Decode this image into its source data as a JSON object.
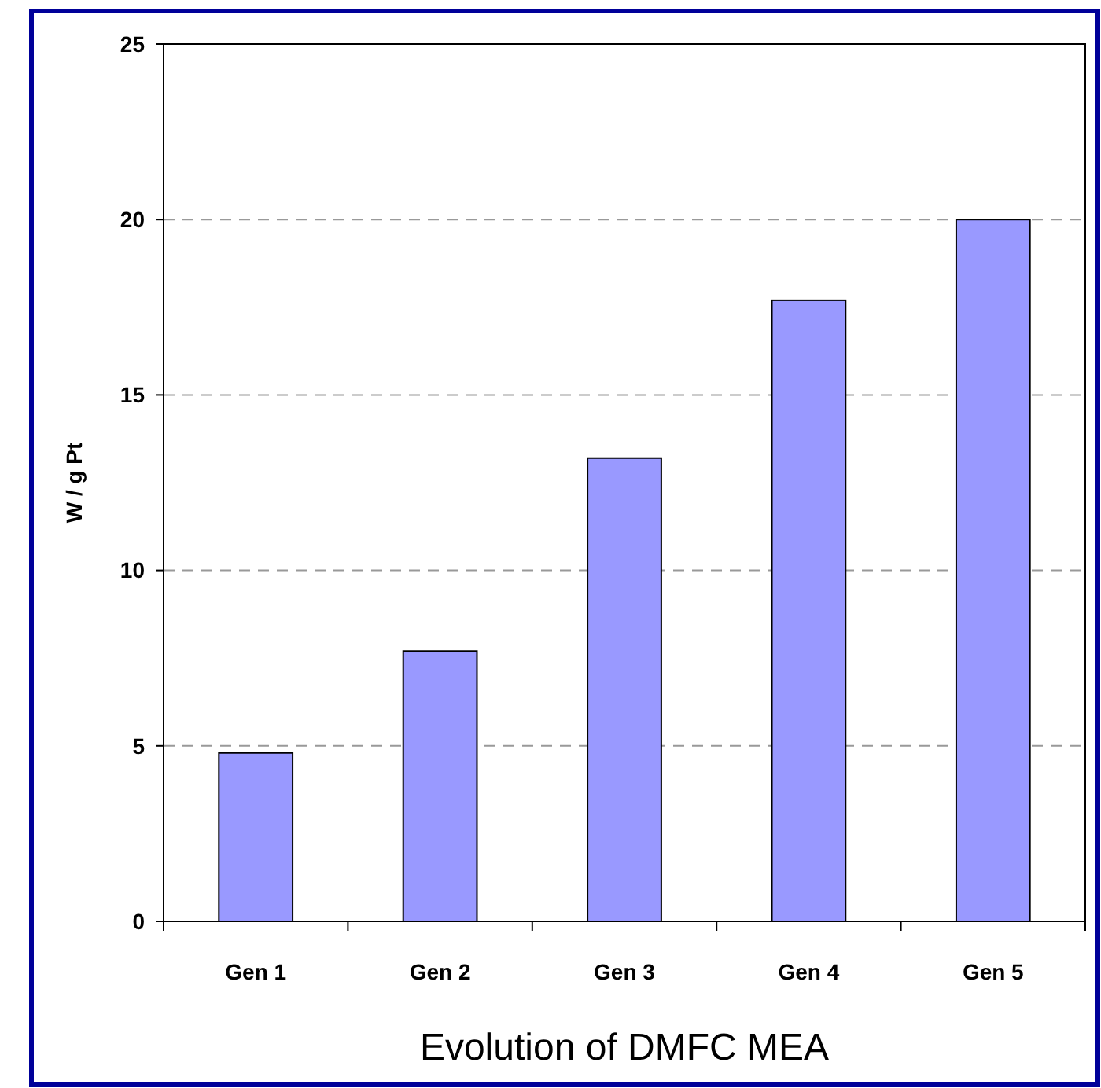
{
  "chart_data": {
    "type": "bar",
    "title": "Evolution of DMFC MEA",
    "ylabel": "W / g Pt",
    "categories": [
      "Gen 1",
      "Gen 2",
      "Gen 3",
      "Gen 4",
      "Gen 5"
    ],
    "values": [
      4.8,
      7.7,
      13.2,
      17.7,
      20
    ],
    "color": "#9999ff",
    "ylim": [
      0,
      25
    ],
    "yticks": [
      0,
      5,
      10,
      15,
      20,
      25
    ],
    "grid": "y"
  }
}
